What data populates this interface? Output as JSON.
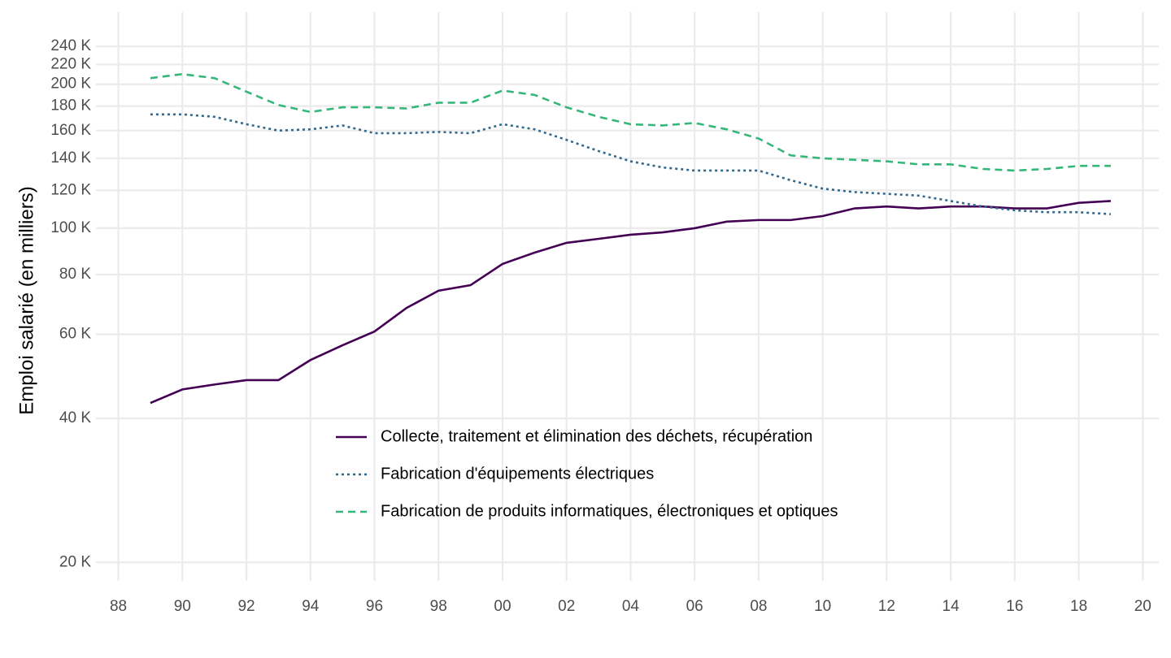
{
  "chart_data": {
    "type": "line",
    "y_label": "Emploi salarié (en milliers)",
    "x": [
      1989,
      1990,
      1991,
      1992,
      1993,
      1994,
      1995,
      1996,
      1997,
      1998,
      1999,
      2000,
      2001,
      2002,
      2003,
      2004,
      2005,
      2006,
      2007,
      2008,
      2009,
      2010,
      2011,
      2012,
      2013,
      2014,
      2015,
      2016,
      2017,
      2018,
      2019
    ],
    "series": [
      {
        "name": "Collecte, traitement et élimination des déchets, récupération",
        "color": "#440154",
        "dash": "solid",
        "values": [
          43100,
          46000,
          47100,
          48100,
          48100,
          53000,
          56900,
          60800,
          68100,
          74000,
          76000,
          84200,
          88900,
          93200,
          95000,
          96900,
          98000,
          100000,
          103200,
          104000,
          104000,
          106000,
          110000,
          111000,
          110000,
          111000,
          111000,
          110000,
          110000,
          113000,
          114000
        ]
      },
      {
        "name": "Fabrication d'équipements électriques",
        "color": "#31688e",
        "dash": "dotted",
        "values": [
          173000,
          173000,
          171000,
          165000,
          160000,
          161000,
          164000,
          158000,
          158000,
          159000,
          158000,
          165000,
          161000,
          153000,
          145000,
          138000,
          134000,
          132000,
          132000,
          132000,
          126000,
          121000,
          119000,
          118000,
          117000,
          114000,
          111000,
          109000,
          108000,
          108000,
          107000
        ]
      },
      {
        "name": "Fabrication de produits informatiques, électroniques et optiques",
        "color": "#35b779",
        "dash": "dashed",
        "values": [
          206000,
          210000,
          206000,
          193000,
          181000,
          175000,
          179000,
          179000,
          178000,
          183000,
          183000,
          194000,
          190000,
          179000,
          171000,
          165000,
          164000,
          166000,
          161000,
          154000,
          142000,
          140000,
          139000,
          138000,
          136000,
          136000,
          133000,
          132000,
          133000,
          135000,
          135000
        ]
      }
    ],
    "xlim": [
      1987.3,
      2020.5
    ],
    "xticks": [
      {
        "value": 1988,
        "label": "88"
      },
      {
        "value": 1990,
        "label": "90"
      },
      {
        "value": 1992,
        "label": "92"
      },
      {
        "value": 1994,
        "label": "94"
      },
      {
        "value": 1996,
        "label": "96"
      },
      {
        "value": 1998,
        "label": "98"
      },
      {
        "value": 2000,
        "label": "00"
      },
      {
        "value": 2002,
        "label": "02"
      },
      {
        "value": 2004,
        "label": "04"
      },
      {
        "value": 2006,
        "label": "06"
      },
      {
        "value": 2008,
        "label": "08"
      },
      {
        "value": 2010,
        "label": "10"
      },
      {
        "value": 2012,
        "label": "12"
      },
      {
        "value": 2014,
        "label": "14"
      },
      {
        "value": 2016,
        "label": "16"
      },
      {
        "value": 2018,
        "label": "18"
      },
      {
        "value": 2020,
        "label": "20"
      }
    ],
    "ylim": [
      18300,
      283000
    ],
    "ylog": true,
    "yticks": [
      {
        "value": 20000,
        "label": "20 K"
      },
      {
        "value": 40000,
        "label": "40 K"
      },
      {
        "value": 60000,
        "label": "60 K"
      },
      {
        "value": 80000,
        "label": "80 K"
      },
      {
        "value": 100000,
        "label": "100 K"
      },
      {
        "value": 120000,
        "label": "120 K"
      },
      {
        "value": 140000,
        "label": "140 K"
      },
      {
        "value": 160000,
        "label": "160 K"
      },
      {
        "value": 180000,
        "label": "180 K"
      },
      {
        "value": 200000,
        "label": "200 K"
      },
      {
        "value": 220000,
        "label": "220 K"
      },
      {
        "value": 240000,
        "label": "240 K"
      }
    ],
    "grid": true,
    "legend": "inside"
  }
}
